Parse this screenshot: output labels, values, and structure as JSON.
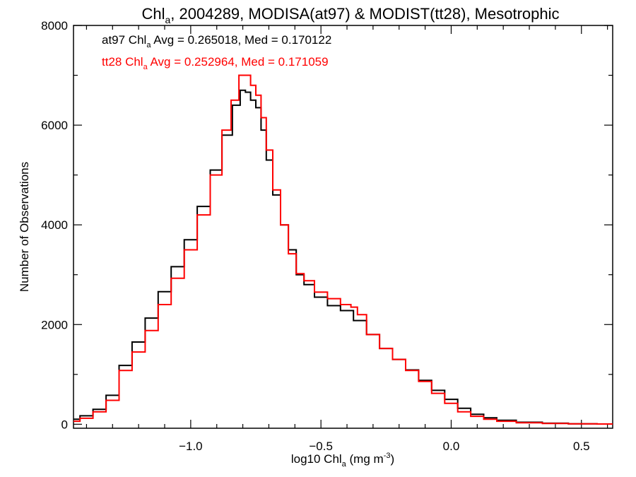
{
  "chart_data": {
    "type": "line",
    "title": {
      "text": "Chl",
      "sub": "a",
      "rest": ", 2004289, MODISA(at97) & MODIST(tt28), Mesotrophic"
    },
    "xlabel": {
      "pre": "log10 Chl",
      "sub": "a",
      "mid": " (mg m",
      "sup": "-3",
      "post": ")"
    },
    "ylabel": "Number of Observations",
    "xlim": [
      -1.45,
      0.62
    ],
    "ylim": [
      -80,
      8000
    ],
    "xticks": [
      -1.0,
      -0.5,
      0.0,
      0.5
    ],
    "xtick_labels": [
      "−1.0",
      "−0.5",
      "0.0",
      "0.5"
    ],
    "yticks": [
      0,
      2000,
      4000,
      6000,
      8000
    ],
    "ytick_labels": [
      "0",
      "2000",
      "4000",
      "6000",
      "8000"
    ],
    "grid": false,
    "legend_placement": "top-left",
    "series": [
      {
        "name": "at97",
        "color": "#000000",
        "label": {
          "pre": "at97 Chl",
          "sub": "a",
          "post": " Avg = 0.265018, Med = 0.170122"
        },
        "points": [
          [
            -1.45,
            100
          ],
          [
            -1.4,
            170
          ],
          [
            -1.35,
            300
          ],
          [
            -1.3,
            580
          ],
          [
            -1.25,
            1180
          ],
          [
            -1.2,
            1650
          ],
          [
            -1.15,
            2130
          ],
          [
            -1.1,
            2660
          ],
          [
            -1.05,
            3160
          ],
          [
            -1.0,
            3700
          ],
          [
            -0.95,
            4370
          ],
          [
            -0.9,
            5100
          ],
          [
            -0.86,
            5800
          ],
          [
            -0.82,
            6400
          ],
          [
            -0.8,
            6700
          ],
          [
            -0.78,
            6660
          ],
          [
            -0.76,
            6500
          ],
          [
            -0.74,
            6350
          ],
          [
            -0.72,
            5900
          ],
          [
            -0.7,
            5300
          ],
          [
            -0.67,
            4600
          ],
          [
            -0.64,
            4000
          ],
          [
            -0.61,
            3500
          ],
          [
            -0.58,
            3000
          ],
          [
            -0.55,
            2800
          ],
          [
            -0.5,
            2550
          ],
          [
            -0.45,
            2380
          ],
          [
            -0.4,
            2280
          ],
          [
            -0.35,
            2080
          ],
          [
            -0.3,
            1800
          ],
          [
            -0.25,
            1520
          ],
          [
            -0.2,
            1300
          ],
          [
            -0.15,
            1090
          ],
          [
            -0.1,
            880
          ],
          [
            -0.05,
            680
          ],
          [
            0.0,
            500
          ],
          [
            0.05,
            320
          ],
          [
            0.1,
            200
          ],
          [
            0.15,
            130
          ],
          [
            0.2,
            80
          ],
          [
            0.3,
            40
          ],
          [
            0.4,
            20
          ],
          [
            0.5,
            10
          ],
          [
            0.62,
            5
          ]
        ]
      },
      {
        "name": "tt28",
        "color": "#ff0000",
        "label": {
          "pre": "tt28 Chl",
          "sub": "a",
          "post": " Avg = 0.252964, Med = 0.171059"
        },
        "points": [
          [
            -1.45,
            60
          ],
          [
            -1.4,
            120
          ],
          [
            -1.35,
            250
          ],
          [
            -1.3,
            480
          ],
          [
            -1.25,
            1080
          ],
          [
            -1.2,
            1450
          ],
          [
            -1.15,
            1880
          ],
          [
            -1.1,
            2400
          ],
          [
            -1.05,
            2930
          ],
          [
            -1.0,
            3500
          ],
          [
            -0.95,
            4200
          ],
          [
            -0.9,
            5000
          ],
          [
            -0.86,
            5900
          ],
          [
            -0.83,
            6500
          ],
          [
            -0.8,
            7000
          ],
          [
            -0.78,
            7000
          ],
          [
            -0.76,
            6800
          ],
          [
            -0.74,
            6600
          ],
          [
            -0.72,
            6150
          ],
          [
            -0.7,
            5500
          ],
          [
            -0.67,
            4700
          ],
          [
            -0.64,
            4000
          ],
          [
            -0.61,
            3420
          ],
          [
            -0.58,
            3020
          ],
          [
            -0.55,
            2880
          ],
          [
            -0.5,
            2650
          ],
          [
            -0.45,
            2520
          ],
          [
            -0.4,
            2400
          ],
          [
            -0.37,
            2350
          ],
          [
            -0.35,
            2200
          ],
          [
            -0.3,
            1800
          ],
          [
            -0.25,
            1520
          ],
          [
            -0.2,
            1300
          ],
          [
            -0.15,
            1080
          ],
          [
            -0.1,
            860
          ],
          [
            -0.05,
            620
          ],
          [
            0.0,
            420
          ],
          [
            0.05,
            250
          ],
          [
            0.1,
            160
          ],
          [
            0.15,
            100
          ],
          [
            0.2,
            60
          ],
          [
            0.3,
            30
          ],
          [
            0.4,
            15
          ],
          [
            0.5,
            8
          ],
          [
            0.62,
            5
          ]
        ]
      }
    ]
  }
}
